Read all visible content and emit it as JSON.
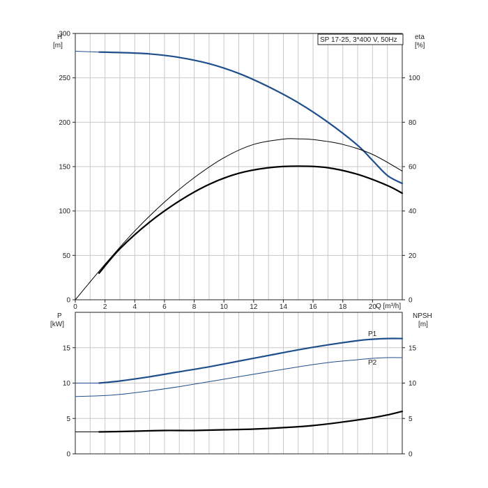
{
  "colors": {
    "blue": "#1f4e8c",
    "black": "#000000",
    "grid": "#c8c8c8"
  },
  "chart_data": [
    {
      "type": "line",
      "title": "SP 17-25, 3*400 V, 50Hz",
      "xlabel": "Q [m³/h]",
      "ylabel_left": "H",
      "ylabel_left_unit": "[m]",
      "ylabel_right": "eta",
      "ylabel_right_unit": "[%]",
      "xlim": [
        0,
        22
      ],
      "ylim_left": [
        0,
        300
      ],
      "ylim_right": [
        0,
        120
      ],
      "x_ticks": [
        "0",
        "2",
        "4",
        "6",
        "8",
        "10",
        "12",
        "14",
        "16",
        "18",
        "20"
      ],
      "y_left_ticks": [
        "0",
        "50",
        "100",
        "150",
        "200",
        "250",
        "300"
      ],
      "y_right_ticks": [
        "0",
        "20",
        "40",
        "60",
        "80",
        "100"
      ],
      "grid": true,
      "series": [
        {
          "axis": "left",
          "color": "#1f4e8c",
          "width": 2.2,
          "x": [
            1.6,
            3,
            5,
            7,
            9,
            11,
            13,
            15,
            17,
            19,
            20,
            21,
            22
          ],
          "y": [
            279,
            278.5,
            277,
            273,
            266,
            255,
            240,
            222,
            200,
            174,
            157,
            140,
            131
          ]
        },
        {
          "axis": "left",
          "color": "#1f4e8c",
          "width": 1,
          "extension": true,
          "x": [
            0,
            1.6
          ],
          "y": [
            280,
            279
          ]
        },
        {
          "axis": "right",
          "color": "#000000",
          "width": 1,
          "x": [
            0,
            2,
            4,
            6,
            8,
            10,
            12,
            14,
            15,
            16,
            18,
            20,
            22
          ],
          "y": [
            0,
            16,
            31,
            44,
            55,
            64,
            70,
            72.4,
            72.5,
            72.2,
            70,
            65.5,
            58
          ]
        },
        {
          "axis": "right",
          "color": "#000000",
          "width": 2.2,
          "x": [
            1.6,
            3,
            5,
            7,
            9,
            11,
            13,
            15,
            17,
            19,
            21,
            22
          ],
          "y": [
            12,
            23,
            35,
            44.5,
            52,
            57,
            59.5,
            60.2,
            59.5,
            56.5,
            51.5,
            48
          ]
        }
      ]
    },
    {
      "type": "line",
      "ylabel_left": "P",
      "ylabel_left_unit": "[kW]",
      "ylabel_right": "NPSH",
      "ylabel_right_unit": "[m]",
      "xlim": [
        0,
        22
      ],
      "ylim_left": [
        0,
        20
      ],
      "ylim_right": [
        0,
        20
      ],
      "y_left_ticks": [
        "0",
        "5",
        "10",
        "15"
      ],
      "y_right_ticks": [
        "0",
        "5",
        "10",
        "15"
      ],
      "grid": true,
      "series": [
        {
          "name": "P1",
          "axis": "left",
          "color": "#1f4e8c",
          "width": 2.2,
          "x": [
            1.6,
            3,
            5,
            7,
            9,
            11,
            13,
            15,
            17,
            19,
            20,
            21,
            22
          ],
          "y": [
            10,
            10.3,
            10.9,
            11.6,
            12.3,
            13.1,
            13.9,
            14.7,
            15.4,
            16.0,
            16.2,
            16.3,
            16.3
          ]
        },
        {
          "axis": "left",
          "color": "#1f4e8c",
          "width": 1,
          "extension": true,
          "x": [
            0,
            1.6
          ],
          "y": [
            10,
            10
          ]
        },
        {
          "name": "P2",
          "axis": "left",
          "color": "#1f4e8c",
          "width": 1,
          "x": [
            0,
            1.6,
            3,
            5,
            7,
            9,
            11,
            13,
            15,
            17,
            19,
            20,
            21,
            22
          ],
          "y": [
            8.1,
            8.2,
            8.4,
            8.9,
            9.5,
            10.2,
            10.9,
            11.6,
            12.3,
            12.9,
            13.3,
            13.5,
            13.6,
            13.6
          ]
        },
        {
          "axis": "right",
          "color": "#000000",
          "width": 2.2,
          "x": [
            1.6,
            4,
            6,
            8,
            10,
            12,
            14,
            16,
            18,
            20,
            21,
            22
          ],
          "y": [
            3.1,
            3.2,
            3.3,
            3.3,
            3.4,
            3.5,
            3.7,
            4.0,
            4.5,
            5.1,
            5.5,
            6.0
          ]
        },
        {
          "axis": "right",
          "color": "#000000",
          "width": 1,
          "extension": true,
          "x": [
            0,
            1.6
          ],
          "y": [
            3.1,
            3.1
          ]
        }
      ]
    }
  ]
}
